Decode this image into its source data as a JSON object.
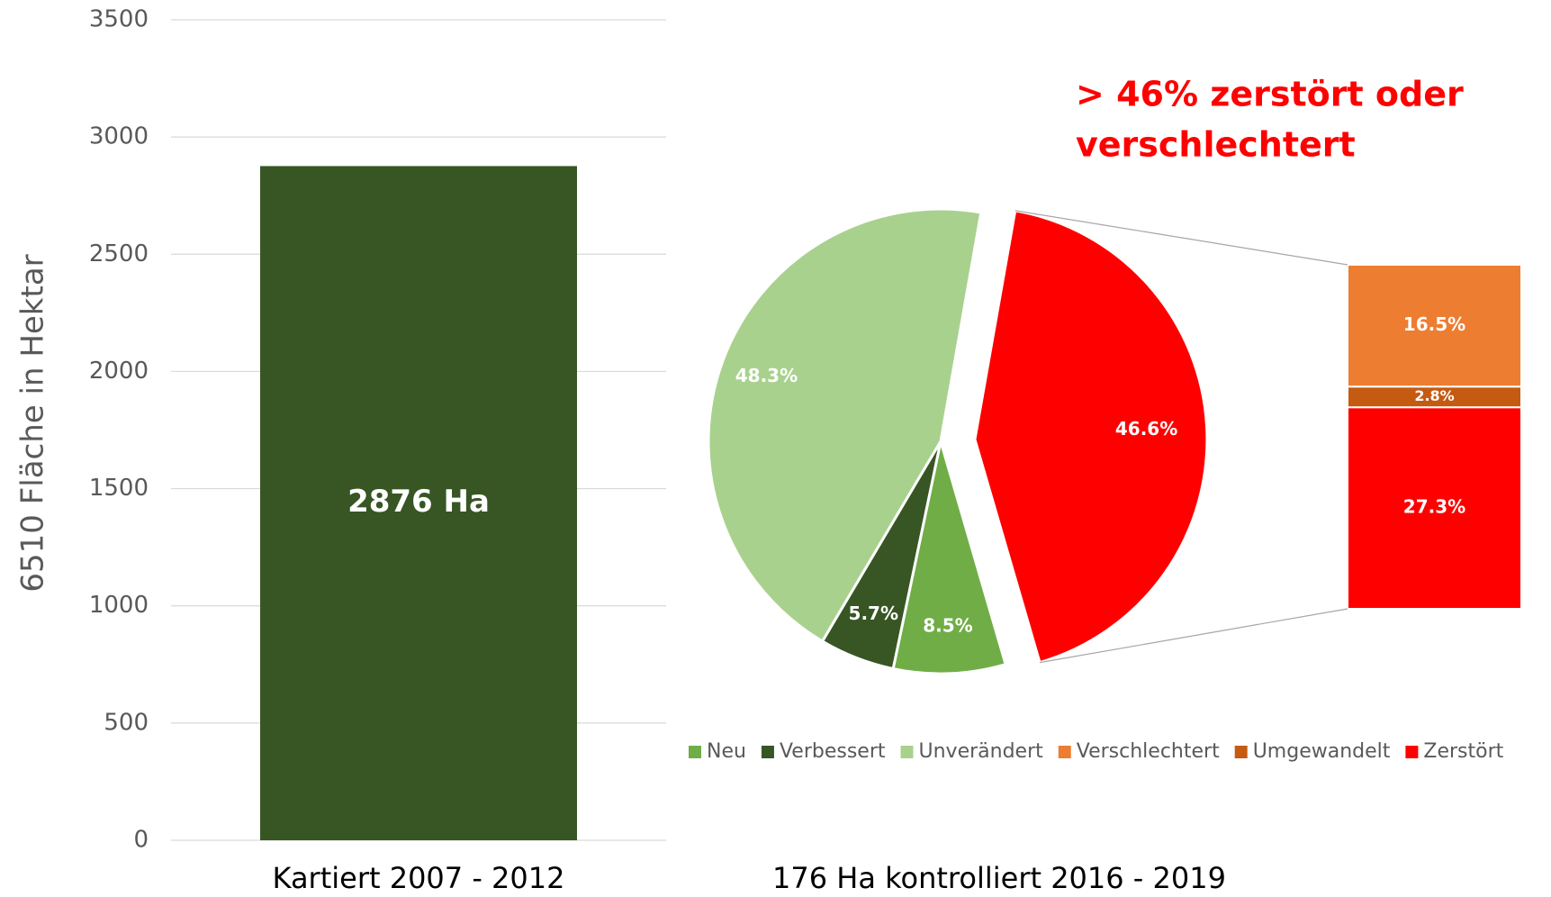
{
  "chart_data": [
    {
      "type": "bar",
      "categories": [
        "Kartiert 2007 - 2012"
      ],
      "values": [
        2876
      ],
      "value_labels": [
        "2876 Ha"
      ],
      "color": "#375623",
      "ylabel": "6510 Fläche in Hektar",
      "ylim": [
        0,
        3500
      ],
      "yticks": [
        0,
        500,
        1000,
        1500,
        2000,
        2500,
        3000,
        3500
      ],
      "grid": true
    },
    {
      "type": "bar-of-pie",
      "xlabel": "176 Ha kontrolliert 2016 - 2019",
      "annotation": [
        "> 46% zerstört oder",
        "verschlechtert"
      ],
      "categories": [
        "Neu",
        "Verbessert",
        "Unverändert",
        null
      ],
      "values": [
        8.5,
        5.7,
        48.3,
        46.6
      ],
      "value_labels": [
        "8.5%",
        "5.7%",
        "48.3%",
        "46.6%"
      ],
      "colors": [
        "#70ad47",
        "#375623",
        "#a9d18e",
        "#ff0000"
      ],
      "breakdown": {
        "categories": [
          "Verschlechtert",
          "Umgewandelt",
          "Zerstört"
        ],
        "values": [
          16.5,
          2.8,
          27.3
        ],
        "value_labels": [
          "16.5%",
          "2.8%",
          "27.3%"
        ],
        "colors": [
          "#ed7d31",
          "#c55a11",
          "#ff0000"
        ]
      },
      "legend": "bottom"
    }
  ]
}
